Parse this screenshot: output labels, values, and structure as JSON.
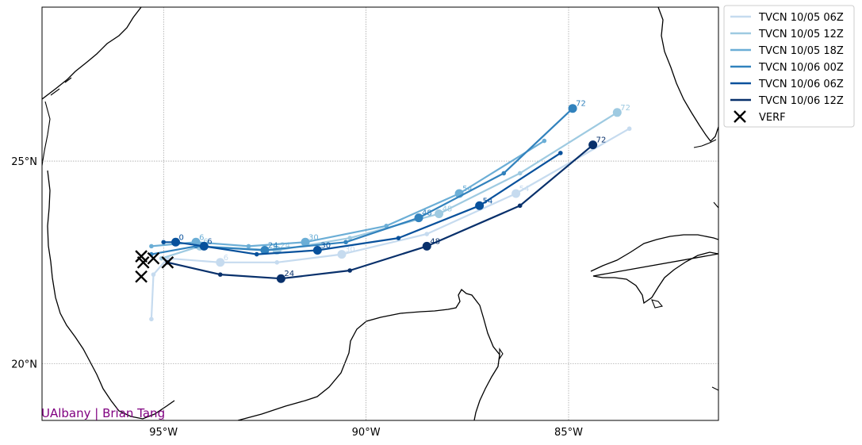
{
  "map": {
    "credit": "UAlbany | Brian Tang",
    "lon_range": [
      -98.0,
      -81.3
    ],
    "lat_range": [
      18.6,
      28.8
    ],
    "x_ticks": [
      {
        "value": -95,
        "label": "95°W"
      },
      {
        "value": -90,
        "label": "90°W"
      },
      {
        "value": -85,
        "label": "85°W"
      }
    ],
    "y_ticks": [
      {
        "value": 25,
        "label": "25°N"
      },
      {
        "value": 20,
        "label": "20°N"
      }
    ],
    "grid": true,
    "legend_position": "outside-upper-right"
  },
  "chart_data": {
    "type": "track-map",
    "series": [
      {
        "name": "TVCN 10/05 06Z",
        "color": "#c6dbef",
        "points": [
          {
            "lon": -95.3,
            "lat": 21.1,
            "h": null
          },
          {
            "lon": -95.25,
            "lat": 22.2,
            "h": null
          },
          {
            "lon": -94.9,
            "lat": 22.6,
            "h": null
          },
          {
            "lon": -93.6,
            "lat": 22.5,
            "h": 6
          },
          {
            "lon": -92.2,
            "lat": 22.5,
            "h": null
          },
          {
            "lon": -90.6,
            "lat": 22.7,
            "h": 30
          },
          {
            "lon": -88.5,
            "lat": 23.2,
            "h": null
          },
          {
            "lon": -86.3,
            "lat": 24.2,
            "h": 54
          },
          {
            "lon": -83.5,
            "lat": 25.8,
            "h": null
          }
        ]
      },
      {
        "name": "TVCN 10/05 12Z",
        "color": "#9ecae1",
        "points": [
          {
            "lon": -95.05,
            "lat": 22.6,
            "h": null
          },
          {
            "lon": -94.1,
            "lat": 22.9,
            "h": 6
          },
          {
            "lon": -92.2,
            "lat": 22.8,
            "h": 24
          },
          {
            "lon": -90.4,
            "lat": 23.1,
            "h": null
          },
          {
            "lon": -88.2,
            "lat": 23.7,
            "h": 48
          },
          {
            "lon": -86.2,
            "lat": 24.7,
            "h": null
          },
          {
            "lon": -83.8,
            "lat": 26.2,
            "h": 72
          }
        ]
      },
      {
        "name": "TVCN 10/05 18Z",
        "color": "#6baed6",
        "points": [
          {
            "lon": -95.3,
            "lat": 22.9,
            "h": null
          },
          {
            "lon": -94.2,
            "lat": 23.0,
            "h": 6
          },
          {
            "lon": -92.9,
            "lat": 22.9,
            "h": null
          },
          {
            "lon": -91.5,
            "lat": 23.0,
            "h": 30
          },
          {
            "lon": -89.5,
            "lat": 23.4,
            "h": null
          },
          {
            "lon": -87.7,
            "lat": 24.2,
            "h": 54
          },
          {
            "lon": -85.6,
            "lat": 25.5,
            "h": null
          }
        ]
      },
      {
        "name": "TVCN 10/06 00Z",
        "color": "#3182bd",
        "points": [
          {
            "lon": -95.3,
            "lat": 22.7,
            "h": null
          },
          {
            "lon": -94.2,
            "lat": 22.9,
            "h": null
          },
          {
            "lon": -92.5,
            "lat": 22.8,
            "h": 24
          },
          {
            "lon": -90.5,
            "lat": 23.0,
            "h": null
          },
          {
            "lon": -88.7,
            "lat": 23.6,
            "h": 48
          },
          {
            "lon": -86.6,
            "lat": 24.7,
            "h": null
          },
          {
            "lon": -84.9,
            "lat": 26.3,
            "h": 72
          }
        ]
      },
      {
        "name": "TVCN 10/06 06Z",
        "color": "#08519c",
        "points": [
          {
            "lon": -95.0,
            "lat": 23.0,
            "h": null
          },
          {
            "lon": -94.7,
            "lat": 23.0,
            "h": 0
          },
          {
            "lon": -94.0,
            "lat": 22.9,
            "h": 6
          },
          {
            "lon": -92.7,
            "lat": 22.7,
            "h": null
          },
          {
            "lon": -91.2,
            "lat": 22.8,
            "h": 30
          },
          {
            "lon": -89.2,
            "lat": 23.1,
            "h": null
          },
          {
            "lon": -87.2,
            "lat": 23.9,
            "h": 54
          },
          {
            "lon": -85.2,
            "lat": 25.2,
            "h": null
          }
        ]
      },
      {
        "name": "TVCN 10/06 12Z",
        "color": "#08306b",
        "points": [
          {
            "lon": -94.9,
            "lat": 22.5,
            "h": null
          },
          {
            "lon": -93.6,
            "lat": 22.2,
            "h": null
          },
          {
            "lon": -92.1,
            "lat": 22.1,
            "h": 24
          },
          {
            "lon": -90.4,
            "lat": 22.3,
            "h": null
          },
          {
            "lon": -88.5,
            "lat": 22.9,
            "h": 48
          },
          {
            "lon": -86.2,
            "lat": 23.9,
            "h": null
          },
          {
            "lon": -84.4,
            "lat": 25.4,
            "h": 72
          }
        ]
      }
    ],
    "verf": {
      "name": "VERF",
      "color": "#000000",
      "points": [
        {
          "lon": -95.55,
          "lat": 22.65
        },
        {
          "lon": -95.5,
          "lat": 22.5
        },
        {
          "lon": -95.25,
          "lat": 22.6
        },
        {
          "lon": -95.55,
          "lat": 22.15
        },
        {
          "lon": -94.9,
          "lat": 22.5
        }
      ]
    }
  }
}
